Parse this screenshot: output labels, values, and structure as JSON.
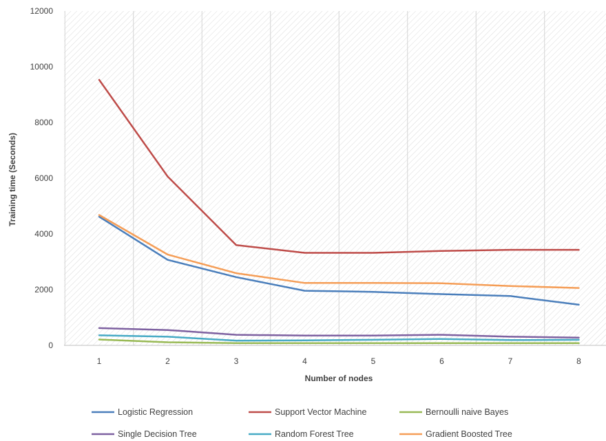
{
  "chart_data": {
    "type": "line",
    "title": "",
    "xlabel": "Number of nodes",
    "ylabel": "Training time (Seconds)",
    "x": [
      1,
      2,
      3,
      4,
      5,
      6,
      7,
      8
    ],
    "ylim": [
      0,
      12000
    ],
    "yticks": [
      0,
      2000,
      4000,
      6000,
      8000,
      10000,
      12000
    ],
    "grid": "vertical gridlines, hatched plot background",
    "legend_position": "bottom",
    "series": [
      {
        "name": "Logistic Regression",
        "color": "#4a7ebb",
        "values": [
          4620,
          3070,
          2450,
          1960,
          1920,
          1840,
          1770,
          1460
        ]
      },
      {
        "name": "Support Vector Machine",
        "color": "#be4b48",
        "values": [
          9530,
          6060,
          3600,
          3320,
          3320,
          3390,
          3430,
          3430
        ]
      },
      {
        "name": "Bernoulli naive Bayes",
        "color": "#98b954",
        "values": [
          210,
          110,
          80,
          80,
          80,
          80,
          80,
          80
        ]
      },
      {
        "name": "Single Decision Tree",
        "color": "#7d60a0",
        "values": [
          620,
          550,
          380,
          350,
          350,
          380,
          310,
          280
        ]
      },
      {
        "name": "Random Forest Tree",
        "color": "#46aac5",
        "values": [
          360,
          310,
          170,
          180,
          200,
          230,
          190,
          200
        ]
      },
      {
        "name": "Gradient Boosted Tree",
        "color": "#f59d56",
        "values": [
          4680,
          3260,
          2590,
          2240,
          2240,
          2230,
          2130,
          2060
        ]
      }
    ]
  }
}
